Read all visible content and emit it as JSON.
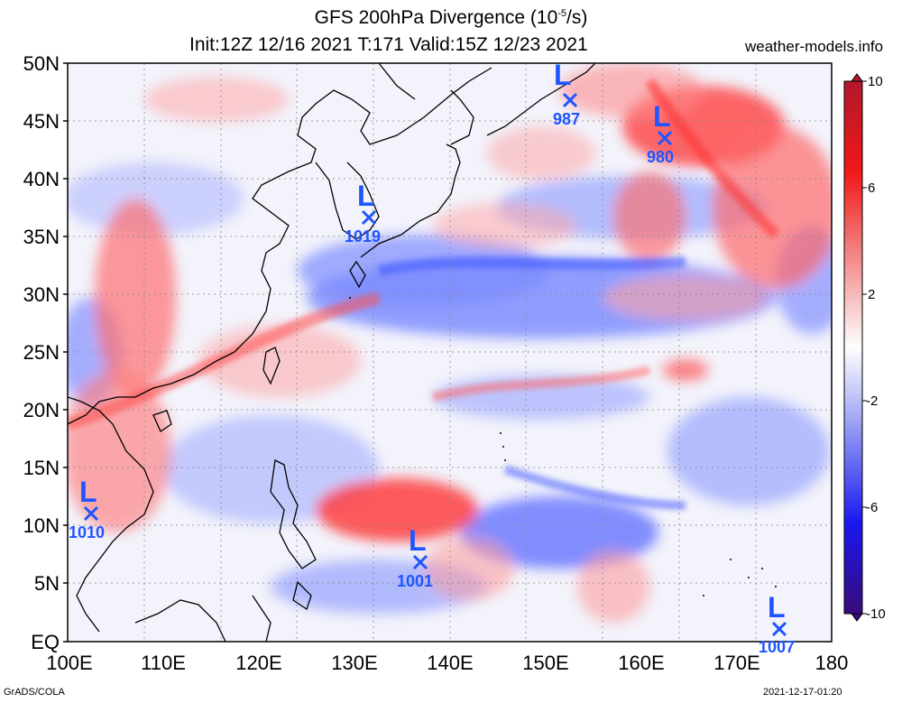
{
  "header": {
    "title_main": "GFS 200hPa Divergence (10",
    "title_exp": "-5",
    "title_tail": "/s)",
    "subtitle": "Init:12Z 12/16 2021 T:171 Valid:15Z 12/23 2021",
    "site": "weather-models.info"
  },
  "footer": {
    "credit": "GrADS/COLA",
    "timestamp": "2021-12-17-01:20"
  },
  "map": {
    "lat_labels": [
      "50N",
      "45N",
      "40N",
      "35N",
      "30N",
      "25N",
      "20N",
      "15N",
      "10N",
      "5N",
      "EQ"
    ],
    "lon_labels": [
      "100E",
      "110E",
      "120E",
      "130E",
      "140E",
      "150E",
      "160E",
      "170E",
      "180"
    ],
    "colorbar_labels": [
      "10",
      "6",
      "2",
      "-2",
      "-6",
      "-10"
    ],
    "colors": {
      "pos": "#e41a1c",
      "neg": "#1f3fff",
      "low_marker": "#1f55ff",
      "max": "#b2182b",
      "min": "#3a0a7a"
    }
  },
  "lows": [
    {
      "symbol": "L",
      "pressure": "987"
    },
    {
      "symbol": "L",
      "pressure": "980"
    },
    {
      "symbol": "L",
      "pressure": "1019"
    },
    {
      "symbol": "L",
      "pressure": "1010"
    },
    {
      "symbol": "L",
      "pressure": "1001"
    },
    {
      "symbol": "L",
      "pressure": "1007"
    }
  ]
}
